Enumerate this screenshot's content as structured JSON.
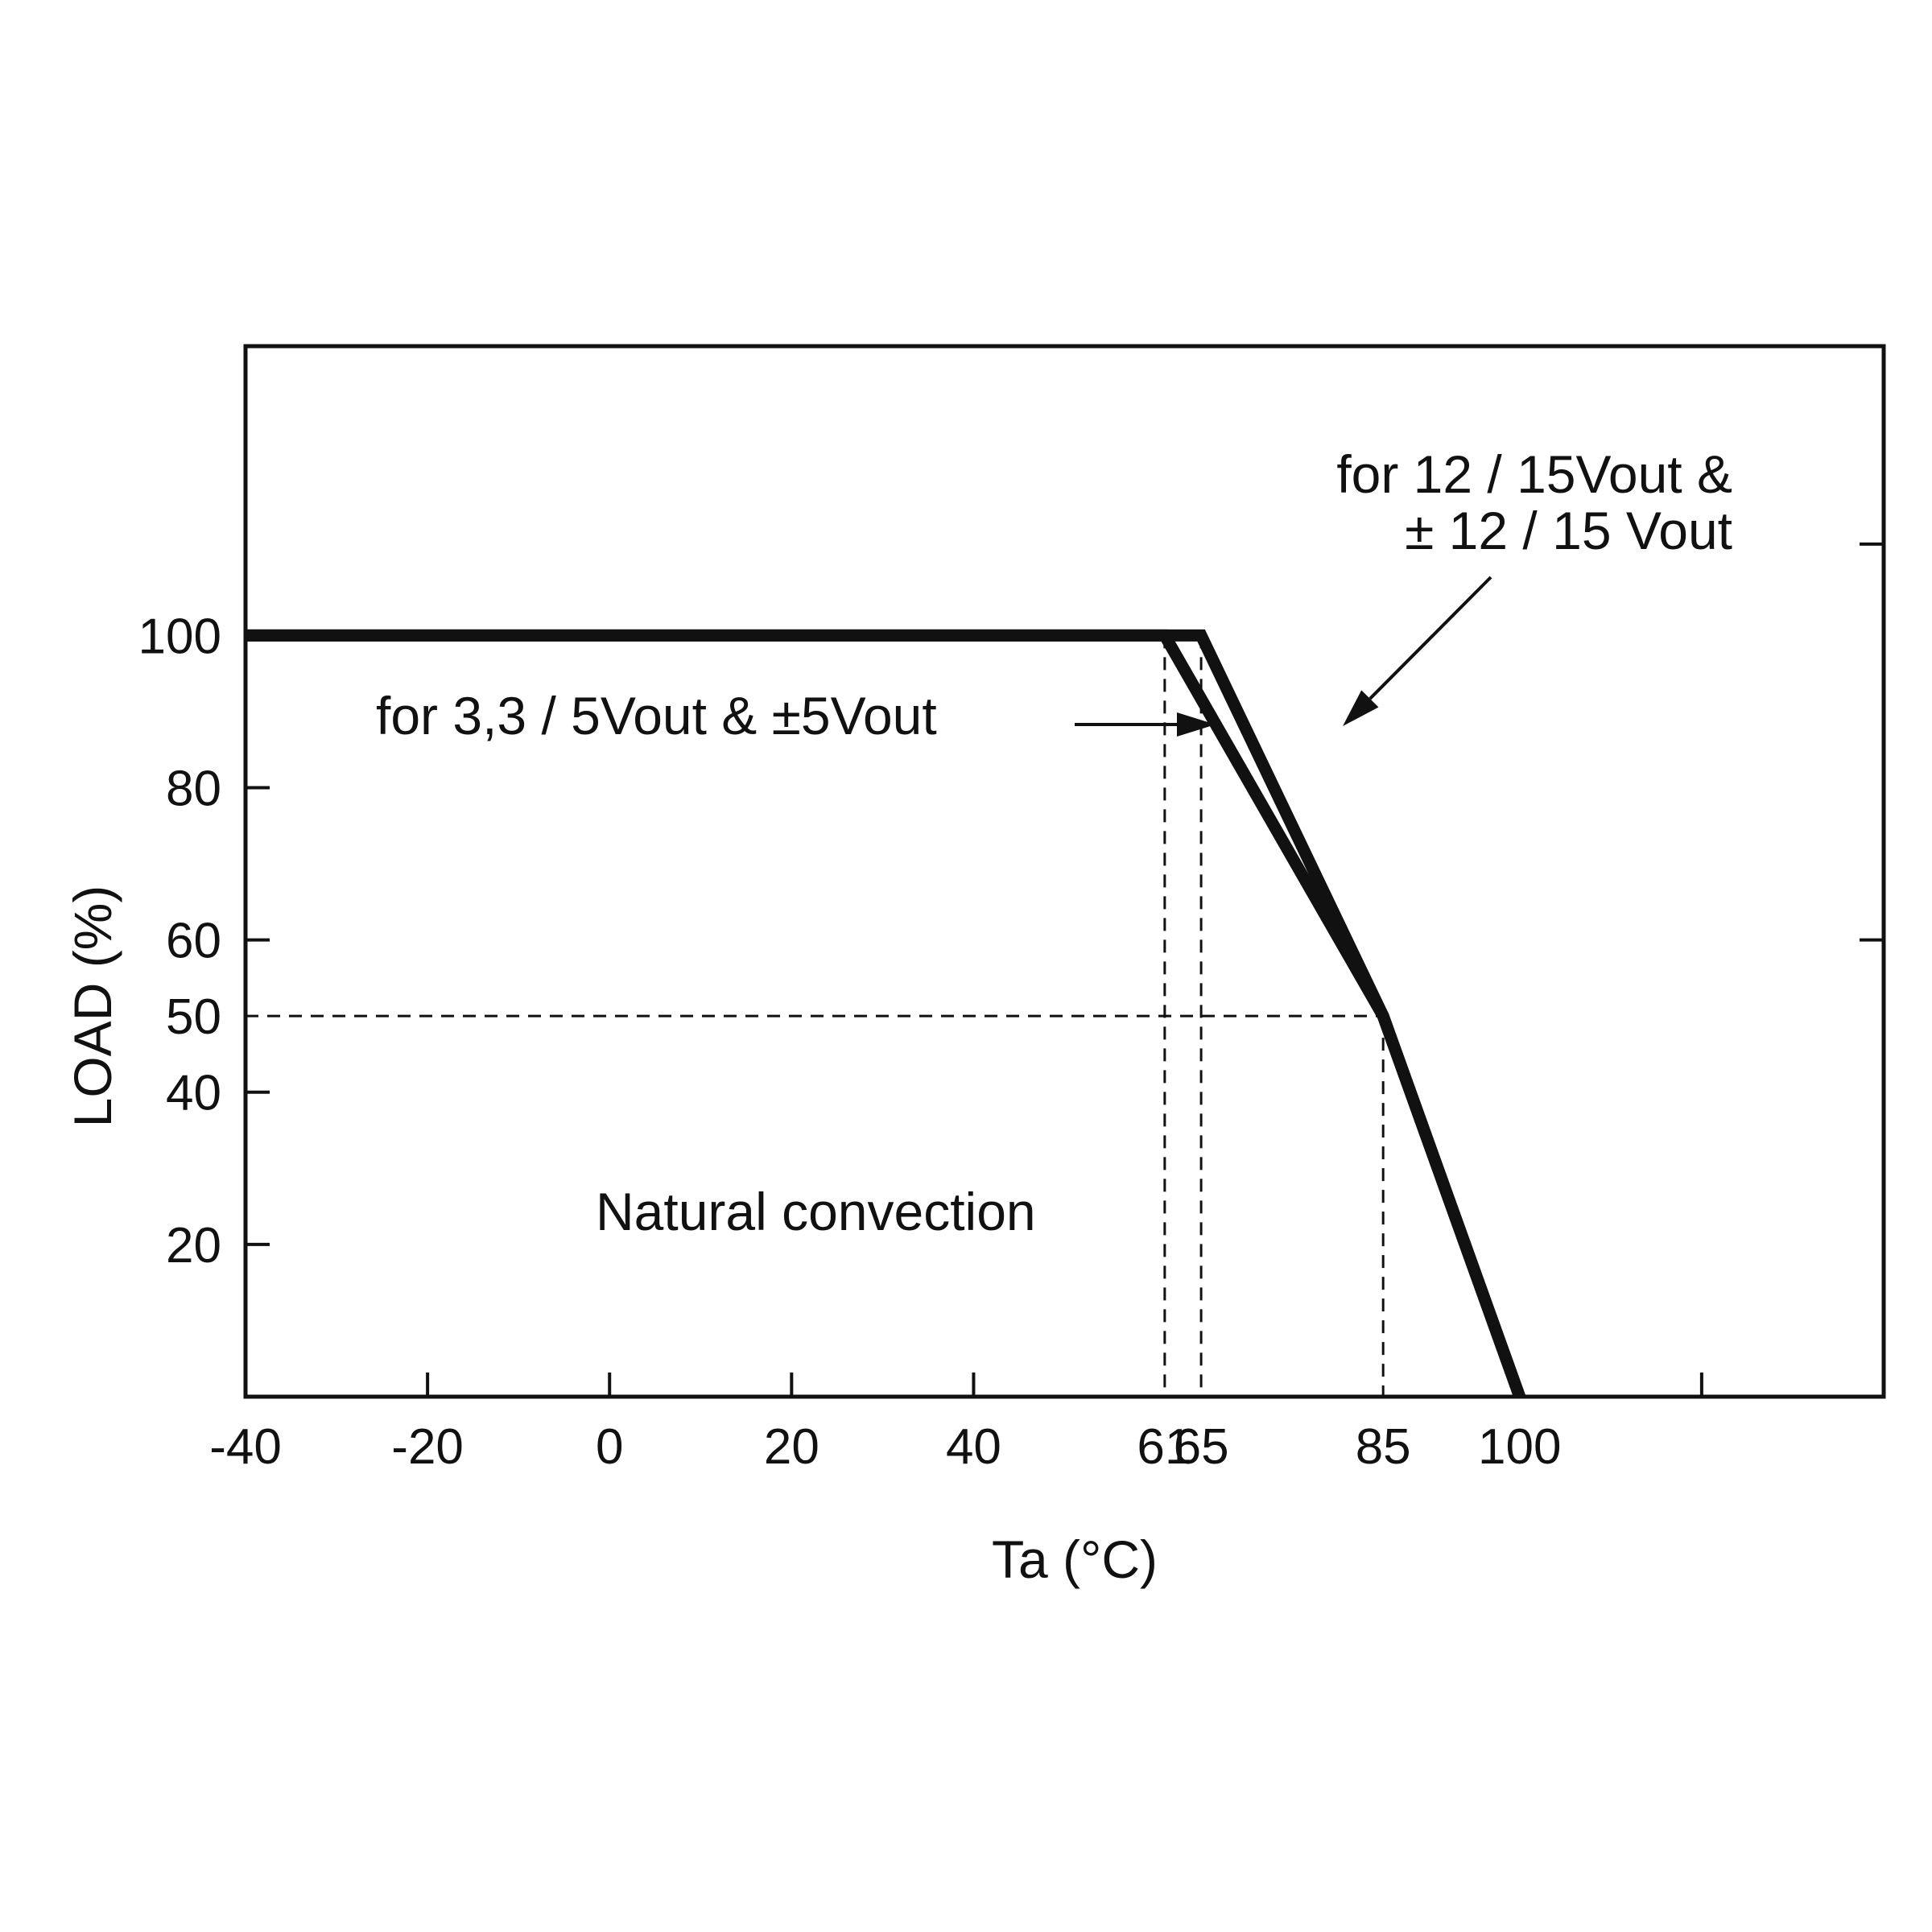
{
  "chart_data": {
    "type": "line",
    "title": "",
    "xlabel": "Ta (°C)",
    "ylabel": "LOAD (%)",
    "xlim": [
      -40,
      140
    ],
    "ylim": [
      0,
      138
    ],
    "x_ticks": [
      -40,
      -20,
      0,
      20,
      40,
      61,
      65,
      85,
      100
    ],
    "x_tick_labels": [
      "-40",
      "-20",
      "0",
      "20",
      "40",
      "61",
      "65",
      "85",
      "100"
    ],
    "x_tick_marks": [
      -20,
      0,
      20,
      40,
      120
    ],
    "y_ticks": [
      20,
      40,
      50,
      60,
      80,
      100
    ],
    "y_tick_labels": [
      "20",
      "40",
      "50",
      "60",
      "80",
      "100"
    ],
    "y_tick_marks": [
      20,
      40,
      60,
      80
    ],
    "y_tick_marks_right": [
      60,
      112
    ],
    "grid": false,
    "series": [
      {
        "name": "for 12 / 15Vout & ± 12 / 15 Vout",
        "x": [
          -40,
          65,
          85,
          100
        ],
        "y": [
          100,
          100,
          50,
          0
        ]
      },
      {
        "name": "for 3,3 / 5Vout & ±5Vout",
        "x": [
          -40,
          61,
          85,
          100
        ],
        "y": [
          100,
          100,
          50,
          0
        ]
      }
    ],
    "reference_lines": {
      "vertical": [
        {
          "x": 61,
          "y_from": 0,
          "y_to": 100
        },
        {
          "x": 65,
          "y_from": 0,
          "y_to": 100
        },
        {
          "x": 85,
          "y_from": 0,
          "y_to": 50
        }
      ],
      "horizontal": [
        {
          "y": 50,
          "x_from": -40,
          "x_to": 85
        }
      ]
    },
    "annotations": {
      "series_a_line1": "for 12 / 15Vout &",
      "series_a_line2": "± 12 / 15 Vout",
      "series_b": "for 3,3 / 5Vout & ±5Vout",
      "condition": "Natural convection"
    }
  }
}
